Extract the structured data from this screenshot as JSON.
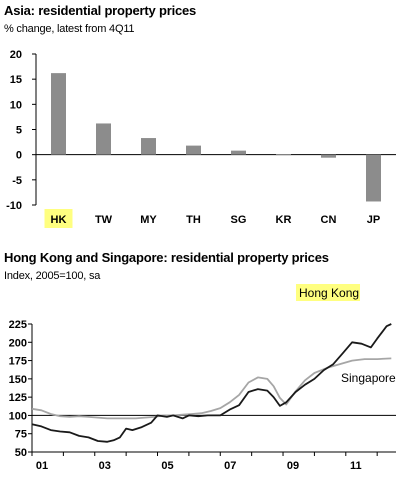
{
  "chart_data": [
    {
      "type": "bar",
      "title": "Asia: residential property prices",
      "subtitle": "% change, latest from 4Q11",
      "categories": [
        "HK",
        "TW",
        "MY",
        "TH",
        "SG",
        "KR",
        "CN",
        "JP"
      ],
      "highlighted_category": "HK",
      "values": [
        16.2,
        6.2,
        3.3,
        1.8,
        0.8,
        0.1,
        -0.6,
        -9.3
      ],
      "ylim": [
        -10,
        20
      ],
      "yticks": [
        -10,
        -5,
        0,
        5,
        10,
        15,
        20
      ],
      "bar_color": "#8c8c8c",
      "highlight_color": "#ffff80",
      "grid": false
    },
    {
      "type": "line",
      "title": "Hong Kong and Singapore: residential property prices",
      "subtitle": "Index, 2005=100, sa",
      "xticks": [
        "01",
        "03",
        "05",
        "07",
        "09",
        "11"
      ],
      "xlim": [
        2001,
        2012.6
      ],
      "ylim": [
        50,
        225
      ],
      "yticks": [
        50,
        75,
        100,
        125,
        150,
        175,
        200,
        225
      ],
      "reference_line": 100,
      "series": [
        {
          "name": "Hong Kong",
          "color": "#1a1a1a",
          "highlight_color": "#ffff80",
          "x": [
            2001.0,
            2001.3,
            2001.6,
            2001.9,
            2002.2,
            2002.5,
            2002.8,
            2003.1,
            2003.4,
            2003.6,
            2003.8,
            2004.0,
            2004.2,
            2004.5,
            2004.8,
            2005.0,
            2005.3,
            2005.5,
            2005.8,
            2006.0,
            2006.3,
            2006.6,
            2007.0,
            2007.3,
            2007.6,
            2007.9,
            2008.2,
            2008.5,
            2008.7,
            2008.9,
            2009.1,
            2009.4,
            2009.7,
            2010.0,
            2010.3,
            2010.6,
            2010.9,
            2011.2,
            2011.5,
            2011.8,
            2012.0,
            2012.3,
            2012.45
          ],
          "values": [
            88,
            85,
            80,
            78,
            77,
            72,
            70,
            65,
            64,
            66,
            70,
            82,
            80,
            84,
            90,
            100,
            98,
            100,
            96,
            100,
            99,
            100,
            100,
            108,
            114,
            132,
            136,
            134,
            125,
            113,
            118,
            132,
            142,
            150,
            162,
            170,
            185,
            200,
            198,
            193,
            205,
            222,
            225
          ]
        },
        {
          "name": "Singapore",
          "color": "#a6a6a6",
          "x": [
            2001.0,
            2001.3,
            2001.6,
            2001.9,
            2002.2,
            2002.5,
            2002.8,
            2003.1,
            2003.4,
            2003.7,
            2004.0,
            2004.3,
            2004.6,
            2004.9,
            2005.2,
            2005.5,
            2005.8,
            2006.1,
            2006.4,
            2006.7,
            2007.0,
            2007.3,
            2007.6,
            2007.9,
            2008.2,
            2008.5,
            2008.7,
            2008.9,
            2009.1,
            2009.4,
            2009.7,
            2010.0,
            2010.4,
            2010.8,
            2011.2,
            2011.6,
            2012.0,
            2012.45
          ],
          "values": [
            109,
            107,
            102,
            99,
            98,
            99,
            98,
            97,
            96,
            96,
            96,
            96,
            97,
            98,
            100,
            100,
            101,
            102,
            103,
            106,
            110,
            118,
            128,
            145,
            152,
            150,
            140,
            124,
            115,
            133,
            148,
            158,
            165,
            170,
            175,
            177,
            177,
            178
          ]
        }
      ]
    }
  ]
}
